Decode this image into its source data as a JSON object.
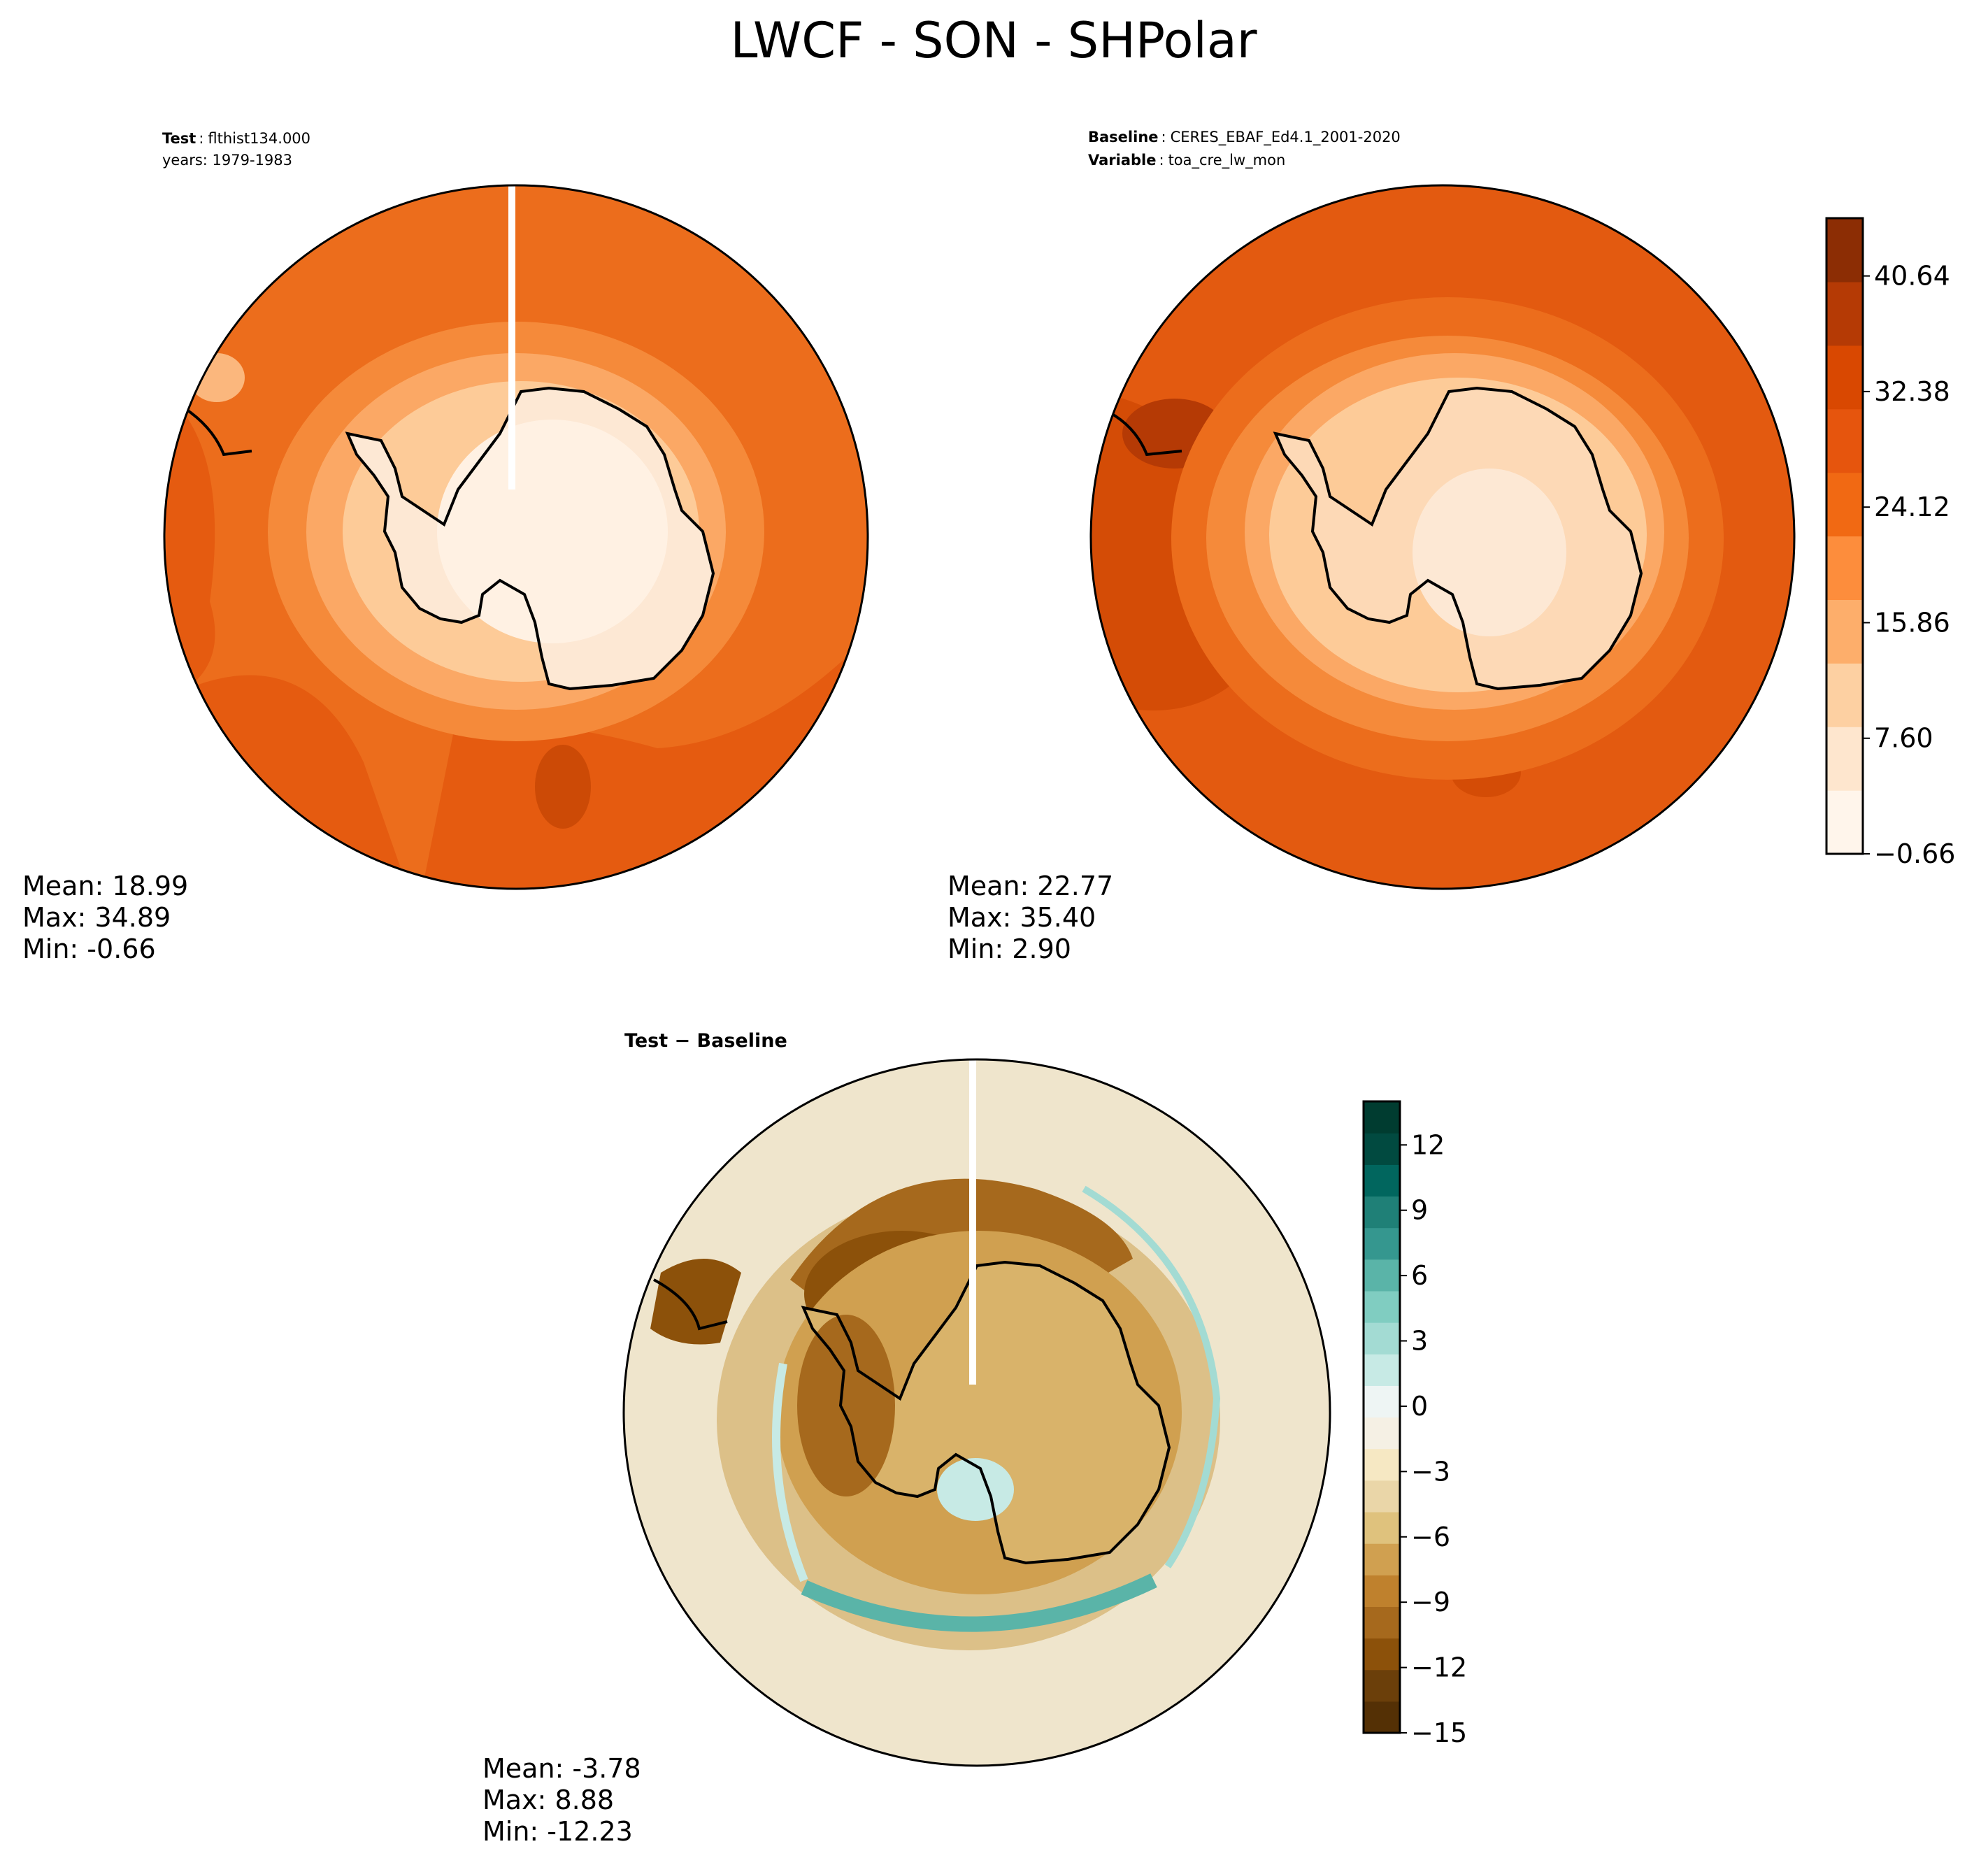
{
  "figure": {
    "title": "LWCF - SON - SHPolar"
  },
  "panels": {
    "test": {
      "label_key": "Test",
      "label_value": "flthist134.000",
      "years": "years: 1979-1983",
      "stats": {
        "mean": "Mean: 18.99",
        "max": "Max: 34.89",
        "min": "Min: -0.66"
      }
    },
    "baseline": {
      "label_key": "Baseline",
      "label_value": "CERES_EBAF_Ed4.1_2001-2020",
      "variable_key": "Variable",
      "variable_value": "toa_cre_lw_mon",
      "stats": {
        "mean": "Mean: 22.77",
        "max": "Max: 35.40",
        "min": "Min:  2.90"
      }
    },
    "diff": {
      "title": "Test − Baseline",
      "stats": {
        "mean": "Mean: -3.78",
        "max": "Max:  8.88",
        "min": "Min: -12.23"
      }
    }
  },
  "colorbar_top": {
    "tick_labels": [
      "40.64",
      "32.38",
      "24.12",
      "15.86",
      "7.60",
      "−0.66"
    ],
    "colors": [
      "#fff5eb",
      "#fee6ce",
      "#fdd0a2",
      "#fdae6b",
      "#fd8d3c",
      "#f16913",
      "#e6550d",
      "#d94801",
      "#b53a05",
      "#8c2d04"
    ]
  },
  "colorbar_bottom": {
    "tick_labels": [
      "12",
      "9",
      "6",
      "3",
      "0",
      "−3",
      "−6",
      "−9",
      "−12",
      "−15"
    ],
    "colors": [
      "#543005",
      "#6b3f0a",
      "#8c510a",
      "#a6691d",
      "#bf812d",
      "#d0a050",
      "#dfc27d",
      "#ead6a8",
      "#f6e8c3",
      "#f5f0e4",
      "#eef5f4",
      "#c7eae5",
      "#a3dbd3",
      "#80cdc1",
      "#5ab4a8",
      "#35978f",
      "#1f8077",
      "#01665e",
      "#014a40",
      "#003c30"
    ]
  },
  "chart_data": [
    {
      "type": "heatmap",
      "title": "Test: flthist134.000",
      "subtitle": "years: 1979-1983",
      "projection": "south-polar stereographic",
      "colorbar_range": [
        -0.66,
        44
      ],
      "stats": {
        "mean": 18.99,
        "max": 34.89,
        "min": -0.66
      }
    },
    {
      "type": "heatmap",
      "title": "Baseline: CERES_EBAF_Ed4.1_2001-2020",
      "subtitle": "Variable: toa_cre_lw_mon",
      "projection": "south-polar stereographic",
      "colorbar_ticks": [
        -0.66,
        7.6,
        15.86,
        24.12,
        32.38,
        40.64
      ],
      "stats": {
        "mean": 22.77,
        "max": 35.4,
        "min": 2.9
      }
    },
    {
      "type": "heatmap",
      "title": "Test − Baseline",
      "projection": "south-polar stereographic",
      "colorbar_ticks": [
        -15,
        -12,
        -9,
        -6,
        -3,
        0,
        3,
        6,
        9,
        12
      ],
      "colorbar_range": [
        -15,
        14
      ],
      "stats": {
        "mean": -3.78,
        "max": 8.88,
        "min": -12.23
      }
    }
  ]
}
